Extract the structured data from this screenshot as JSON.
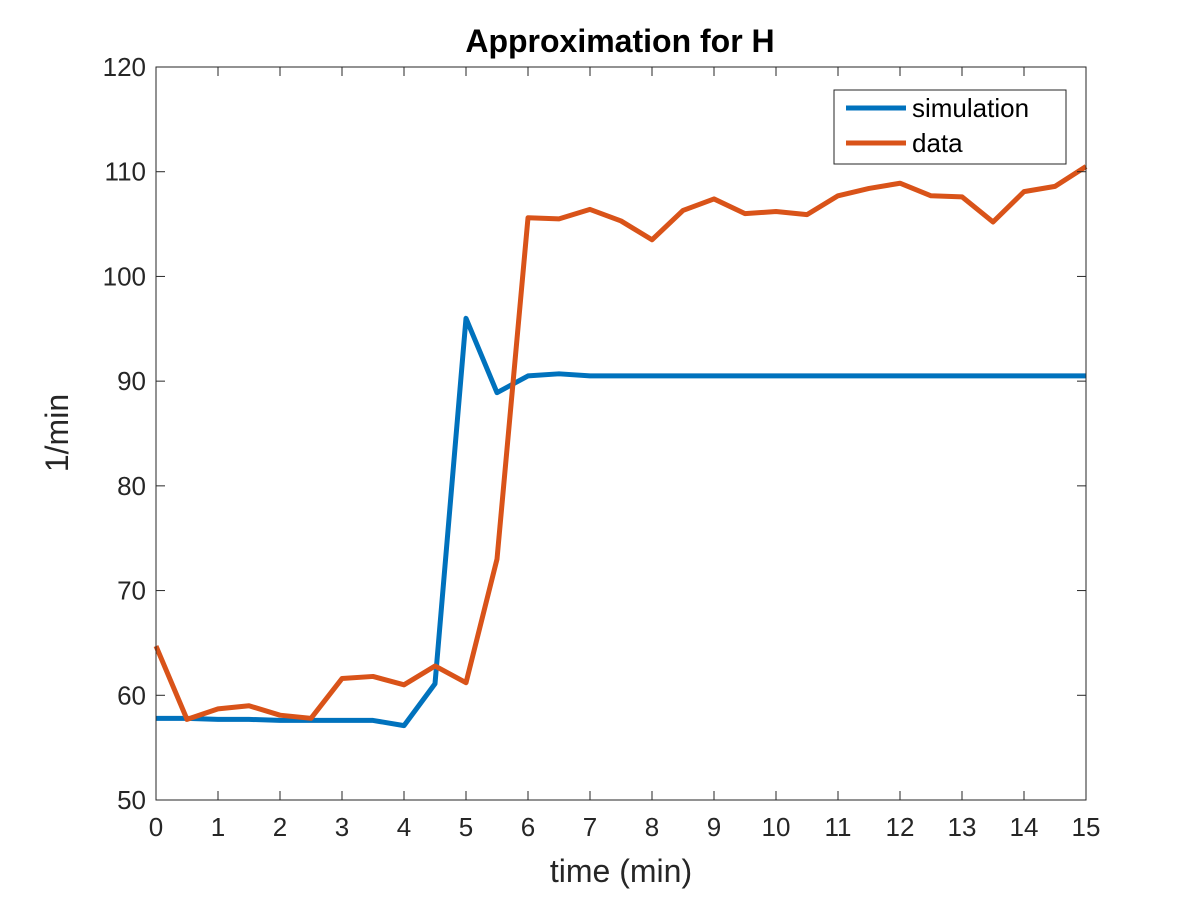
{
  "chart_data": {
    "type": "line",
    "title": "Approximation for H",
    "xlabel": "time (min)",
    "ylabel": "1/min",
    "xlim": [
      0,
      15
    ],
    "ylim": [
      50,
      120
    ],
    "xticks": [
      0,
      1,
      2,
      3,
      4,
      5,
      6,
      7,
      8,
      9,
      10,
      11,
      12,
      13,
      14,
      15
    ],
    "yticks": [
      50,
      60,
      70,
      80,
      90,
      100,
      110,
      120
    ],
    "grid": false,
    "legend_position": "top-right",
    "series": [
      {
        "name": "simulation",
        "color": "#0072BD",
        "x": [
          0,
          0.5,
          1,
          1.5,
          2,
          2.5,
          3,
          3.5,
          4,
          4.5,
          5,
          5.5,
          6,
          6.5,
          7,
          7.5,
          8,
          8.5,
          9,
          9.5,
          10,
          10.5,
          11,
          11.5,
          12,
          12.5,
          13,
          13.5,
          14,
          14.5,
          15
        ],
        "y": [
          57.8,
          57.8,
          57.7,
          57.7,
          57.6,
          57.6,
          57.6,
          57.6,
          57.1,
          61.1,
          96.0,
          88.9,
          90.5,
          90.7,
          90.5,
          90.5,
          90.5,
          90.5,
          90.5,
          90.5,
          90.5,
          90.5,
          90.5,
          90.5,
          90.5,
          90.5,
          90.5,
          90.5,
          90.5,
          90.5,
          90.5
        ]
      },
      {
        "name": "data",
        "color": "#D95319",
        "x": [
          0,
          0.5,
          1,
          1.5,
          2,
          2.5,
          3,
          3.5,
          4,
          4.5,
          5,
          5.5,
          6,
          6.5,
          7,
          7.5,
          8,
          8.5,
          9,
          9.5,
          10,
          10.5,
          11,
          11.5,
          12,
          12.5,
          13,
          13.5,
          14,
          14.5,
          15
        ],
        "y": [
          64.7,
          57.7,
          58.7,
          59.0,
          58.1,
          57.8,
          61.6,
          61.8,
          61.0,
          62.8,
          61.2,
          73.0,
          105.6,
          105.5,
          106.4,
          105.3,
          103.5,
          106.3,
          107.4,
          106.0,
          106.2,
          105.9,
          107.7,
          108.4,
          108.9,
          107.7,
          107.6,
          105.2,
          108.1,
          108.6,
          110.5
        ]
      }
    ]
  }
}
